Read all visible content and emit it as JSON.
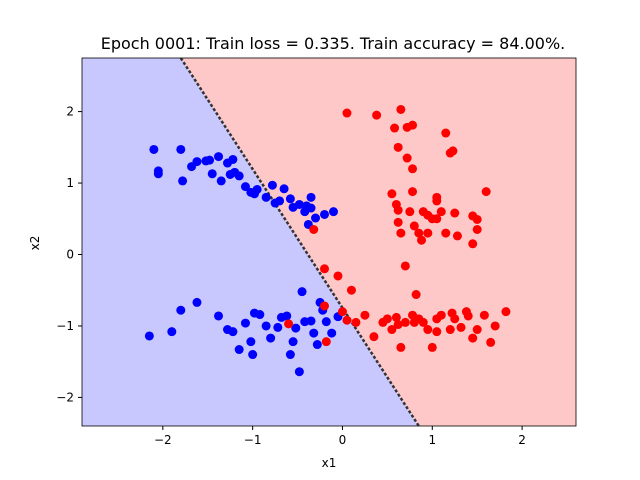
{
  "chart_data": {
    "type": "scatter",
    "title": "Epoch 0001: Train loss = 0.335. Train accuracy = 84.00%.",
    "xlabel": "x1",
    "ylabel": "x2",
    "xlim": [
      -2.9,
      2.6
    ],
    "ylim": [
      -2.4,
      2.75
    ],
    "xticks": [
      -2,
      -1,
      0,
      1,
      2
    ],
    "yticks": [
      -2,
      -1,
      0,
      1,
      2
    ],
    "grid": false,
    "background_regions": [
      {
        "name": "class 0 region",
        "color": "#c8c8ff"
      },
      {
        "name": "class 1 region",
        "color": "#ffc8c8"
      }
    ],
    "decision_boundary": {
      "color": "#333333",
      "points": [
        [
          -1.8,
          2.75
        ],
        [
          0.85,
          -2.4
        ]
      ]
    },
    "series": [
      {
        "color": "#0000ff",
        "points": [
          [
            -2.1,
            1.47
          ],
          [
            -2.05,
            1.13
          ],
          [
            -2.05,
            1.17
          ],
          [
            -1.8,
            1.47
          ],
          [
            -1.78,
            1.03
          ],
          [
            -1.68,
            1.23
          ],
          [
            -1.62,
            1.3
          ],
          [
            -1.52,
            1.31
          ],
          [
            -1.48,
            1.32
          ],
          [
            -1.45,
            1.13
          ],
          [
            -1.38,
            1.37
          ],
          [
            -1.35,
            1.03
          ],
          [
            -1.28,
            1.28
          ],
          [
            -1.25,
            1.12
          ],
          [
            -1.22,
            1.33
          ],
          [
            -1.2,
            1.15
          ],
          [
            -1.15,
            1.1
          ],
          [
            -1.08,
            0.95
          ],
          [
            -1.02,
            0.87
          ],
          [
            -0.98,
            0.85
          ],
          [
            -0.95,
            0.91
          ],
          [
            -0.85,
            0.8
          ],
          [
            -0.78,
            0.97
          ],
          [
            -0.75,
            0.72
          ],
          [
            -0.7,
            0.75
          ],
          [
            -0.65,
            0.92
          ],
          [
            -0.58,
            0.78
          ],
          [
            -0.55,
            0.66
          ],
          [
            -0.48,
            0.7
          ],
          [
            -0.42,
            0.6
          ],
          [
            -0.4,
            0.68
          ],
          [
            -0.38,
            0.42
          ],
          [
            -0.35,
            0.65
          ],
          [
            -0.3,
            0.51
          ],
          [
            -0.2,
            0.56
          ],
          [
            -0.1,
            0.6
          ],
          [
            -0.35,
            0.8
          ],
          [
            -2.15,
            -1.14
          ],
          [
            -1.9,
            -1.08
          ],
          [
            -1.8,
            -0.78
          ],
          [
            -1.62,
            -0.67
          ],
          [
            -1.38,
            -0.86
          ],
          [
            -1.28,
            -1.05
          ],
          [
            -1.22,
            -1.08
          ],
          [
            -1.15,
            -1.33
          ],
          [
            -1.08,
            -0.96
          ],
          [
            -1.02,
            -1.22
          ],
          [
            -1.0,
            -1.4
          ],
          [
            -0.98,
            -0.82
          ],
          [
            -0.92,
            -0.84
          ],
          [
            -0.85,
            -1.0
          ],
          [
            -0.8,
            -1.17
          ],
          [
            -0.72,
            -1.02
          ],
          [
            -0.68,
            -0.88
          ],
          [
            -0.62,
            -0.86
          ],
          [
            -0.58,
            -1.4
          ],
          [
            -0.55,
            -1.22
          ],
          [
            -0.52,
            -1.03
          ],
          [
            -0.48,
            -1.64
          ],
          [
            -0.45,
            -0.52
          ],
          [
            -0.42,
            -0.94
          ],
          [
            -0.35,
            -0.93
          ],
          [
            -0.32,
            -1.1
          ],
          [
            -0.28,
            -1.26
          ],
          [
            -0.25,
            -0.67
          ],
          [
            -0.22,
            -0.78
          ],
          [
            -0.18,
            -0.94
          ],
          [
            -0.12,
            -1.1
          ],
          [
            -0.05,
            -0.87
          ]
        ]
      },
      {
        "color": "#ff0000",
        "points": [
          [
            0.05,
            1.98
          ],
          [
            0.38,
            1.95
          ],
          [
            0.58,
            1.77
          ],
          [
            0.65,
            2.03
          ],
          [
            0.72,
            1.78
          ],
          [
            0.78,
            1.81
          ],
          [
            0.62,
            1.5
          ],
          [
            0.72,
            1.35
          ],
          [
            0.78,
            1.2
          ],
          [
            0.78,
            0.88
          ],
          [
            0.9,
            0.6
          ],
          [
            0.95,
            0.55
          ],
          [
            1.0,
            0.5
          ],
          [
            1.05,
            0.8
          ],
          [
            1.05,
            0.5
          ],
          [
            1.1,
            0.6
          ],
          [
            0.55,
            0.85
          ],
          [
            0.6,
            0.7
          ],
          [
            0.62,
            0.45
          ],
          [
            0.65,
            0.3
          ],
          [
            0.62,
            0.62
          ],
          [
            0.75,
            0.6
          ],
          [
            0.8,
            0.4
          ],
          [
            0.85,
            0.3
          ],
          [
            0.88,
            0.2
          ],
          [
            0.95,
            0.3
          ],
          [
            1.05,
            0.75
          ],
          [
            1.15,
            0.3
          ],
          [
            1.25,
            0.58
          ],
          [
            1.28,
            0.26
          ],
          [
            1.2,
            1.42
          ],
          [
            1.23,
            1.45
          ],
          [
            1.15,
            1.7
          ],
          [
            1.45,
            0.54
          ],
          [
            1.5,
            0.49
          ],
          [
            1.5,
            0.35
          ],
          [
            1.45,
            0.15
          ],
          [
            1.6,
            0.88
          ],
          [
            0.7,
            -0.16
          ],
          [
            -0.32,
            0.35
          ],
          [
            -0.2,
            -0.2
          ],
          [
            -0.05,
            -0.3
          ],
          [
            0.0,
            -0.8
          ],
          [
            0.1,
            -0.5
          ],
          [
            0.05,
            -0.92
          ],
          [
            0.15,
            -0.95
          ],
          [
            0.25,
            -0.85
          ],
          [
            0.35,
            -1.15
          ],
          [
            0.45,
            -0.95
          ],
          [
            0.5,
            -0.9
          ],
          [
            0.55,
            -1.05
          ],
          [
            0.6,
            -0.88
          ],
          [
            0.62,
            -0.98
          ],
          [
            0.65,
            -1.3
          ],
          [
            0.7,
            -0.95
          ],
          [
            0.78,
            -0.85
          ],
          [
            0.8,
            -0.95
          ],
          [
            0.82,
            -0.56
          ],
          [
            0.85,
            -0.9
          ],
          [
            0.9,
            -0.95
          ],
          [
            0.95,
            -1.05
          ],
          [
            1.0,
            -1.3
          ],
          [
            1.05,
            -0.9
          ],
          [
            1.1,
            -0.85
          ],
          [
            1.2,
            -1.05
          ],
          [
            1.25,
            -0.9
          ],
          [
            1.32,
            -1.02
          ],
          [
            1.38,
            -0.8
          ],
          [
            1.45,
            -1.17
          ],
          [
            1.5,
            -1.05
          ],
          [
            1.58,
            -0.85
          ],
          [
            1.65,
            -1.23
          ],
          [
            1.7,
            -1.0
          ],
          [
            1.82,
            -0.8
          ],
          [
            1.05,
            -1.08
          ],
          [
            1.22,
            -0.82
          ],
          [
            1.4,
            -0.86
          ],
          [
            -0.18,
            -1.22
          ],
          [
            -0.6,
            -0.97
          ],
          [
            -0.2,
            -0.72
          ]
        ]
      }
    ]
  }
}
